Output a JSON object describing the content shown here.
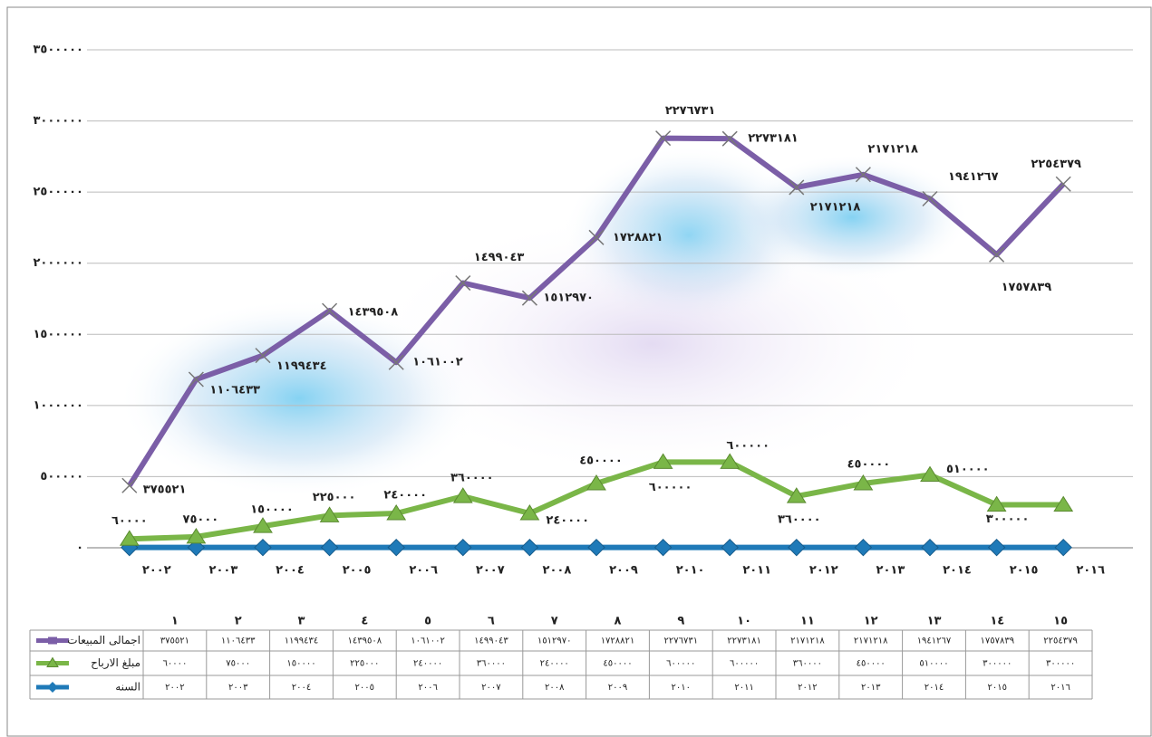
{
  "chart_data": {
    "type": "stacked-line",
    "categories": [
      "١",
      "٢",
      "٣",
      "٤",
      "٥",
      "٦",
      "٧",
      "٨",
      "٩",
      "١٠",
      "١١",
      "١٢",
      "١٣",
      "١٤",
      "١٥"
    ],
    "x_axis_labels": [
      "٢٠٠٢",
      "٢٠٠٣",
      "٢٠٠٤",
      "٢٠٠٥",
      "٢٠٠٦",
      "٢٠٠٧",
      "٢٠٠٨",
      "٢٠٠٩",
      "٢٠١٠",
      "٢٠١١",
      "٢٠١٢",
      "٢٠١٣",
      "٢٠١٤",
      "٢٠١٥",
      "٢٠١٦"
    ],
    "series": [
      {
        "name": "اجمالى المبيعات",
        "color": "#7b5ea7",
        "marker": "x",
        "values": [
          375521,
          1106433,
          1199434,
          1439508,
          1061002,
          1499043,
          1512970,
          1728821,
          2276731,
          2273181,
          2171218,
          2171218,
          1941267,
          1757839,
          2254379
        ],
        "value_labels": [
          "٣٧٥٥٢١",
          "١١٠٦٤٣٣",
          "١١٩٩٤٣٤",
          "١٤٣٩٥٠٨",
          "١٠٦١٠٠٢",
          "١٤٩٩٠٤٣",
          "١٥١٢٩٧٠",
          "١٧٢٨٨٢١",
          "٢٢٧٦٧٣١",
          "٢٢٧٣١٨١",
          "٢١٧١٢١٨",
          "٢١٧١٢١٨",
          "١٩٤١٢٦٧",
          "١٧٥٧٨٣٩",
          "٢٢٥٤٣٧٩"
        ]
      },
      {
        "name": "مبلغ الارباح",
        "color": "#7ab648",
        "marker": "triangle",
        "values": [
          60000,
          75000,
          150000,
          225000,
          240000,
          360000,
          240000,
          450000,
          600000,
          600000,
          360000,
          450000,
          510000,
          300000,
          300000
        ],
        "value_labels": [
          "٦٠٠٠٠",
          "٧٥٠٠٠",
          "١٥٠٠٠٠",
          "٢٢٥٠٠٠",
          "٢٤٠٠٠٠",
          "٣٦٠٠٠٠",
          "٢٤٠٠٠٠",
          "٤٥٠٠٠٠",
          "٦٠٠٠٠٠",
          "٦٠٠٠٠٠",
          "٣٦٠٠٠٠",
          "٤٥٠٠٠٠",
          "٥١٠٠٠٠",
          "٣٠٠٠٠٠",
          "٣٠٠٠٠٠"
        ]
      },
      {
        "name": "السنه",
        "color": "#1f7ab8",
        "marker": "diamond",
        "values": [
          2002,
          2003,
          2004,
          2005,
          2006,
          2007,
          2008,
          2009,
          2010,
          2011,
          2012,
          2013,
          2014,
          2015,
          2016
        ],
        "value_labels": [
          "٢٠٠٢",
          "٢٠٠٣",
          "٢٠٠٤",
          "٢٠٠٥",
          "٢٠٠٦",
          "٢٠٠٧",
          "٢٠٠٨",
          "٢٠٠٩",
          "٢٠١٠",
          "٢٠١١",
          "٢٠١٢",
          "٢٠١٣",
          "٢٠١٤",
          "٢٠١٥",
          "٢٠١٦"
        ]
      }
    ],
    "ylim": [
      0,
      3500000
    ],
    "yticks": [
      {
        "value": 0,
        "label": "٠"
      },
      {
        "value": 500000,
        "label": "٥٠٠٠٠٠"
      },
      {
        "value": 1000000,
        "label": "١٠٠٠٠٠٠"
      },
      {
        "value": 1500000,
        "label": "١٥٠٠٠٠٠"
      },
      {
        "value": 2000000,
        "label": "٢٠٠٠٠٠٠"
      },
      {
        "value": 2500000,
        "label": "٢٥٠٠٠٠٠"
      },
      {
        "value": 3000000,
        "label": "٣٠٠٠٠٠٠"
      },
      {
        "value": 3500000,
        "label": "٣٥٠٠٠٠٠"
      }
    ],
    "grid": true,
    "data_table": true
  }
}
